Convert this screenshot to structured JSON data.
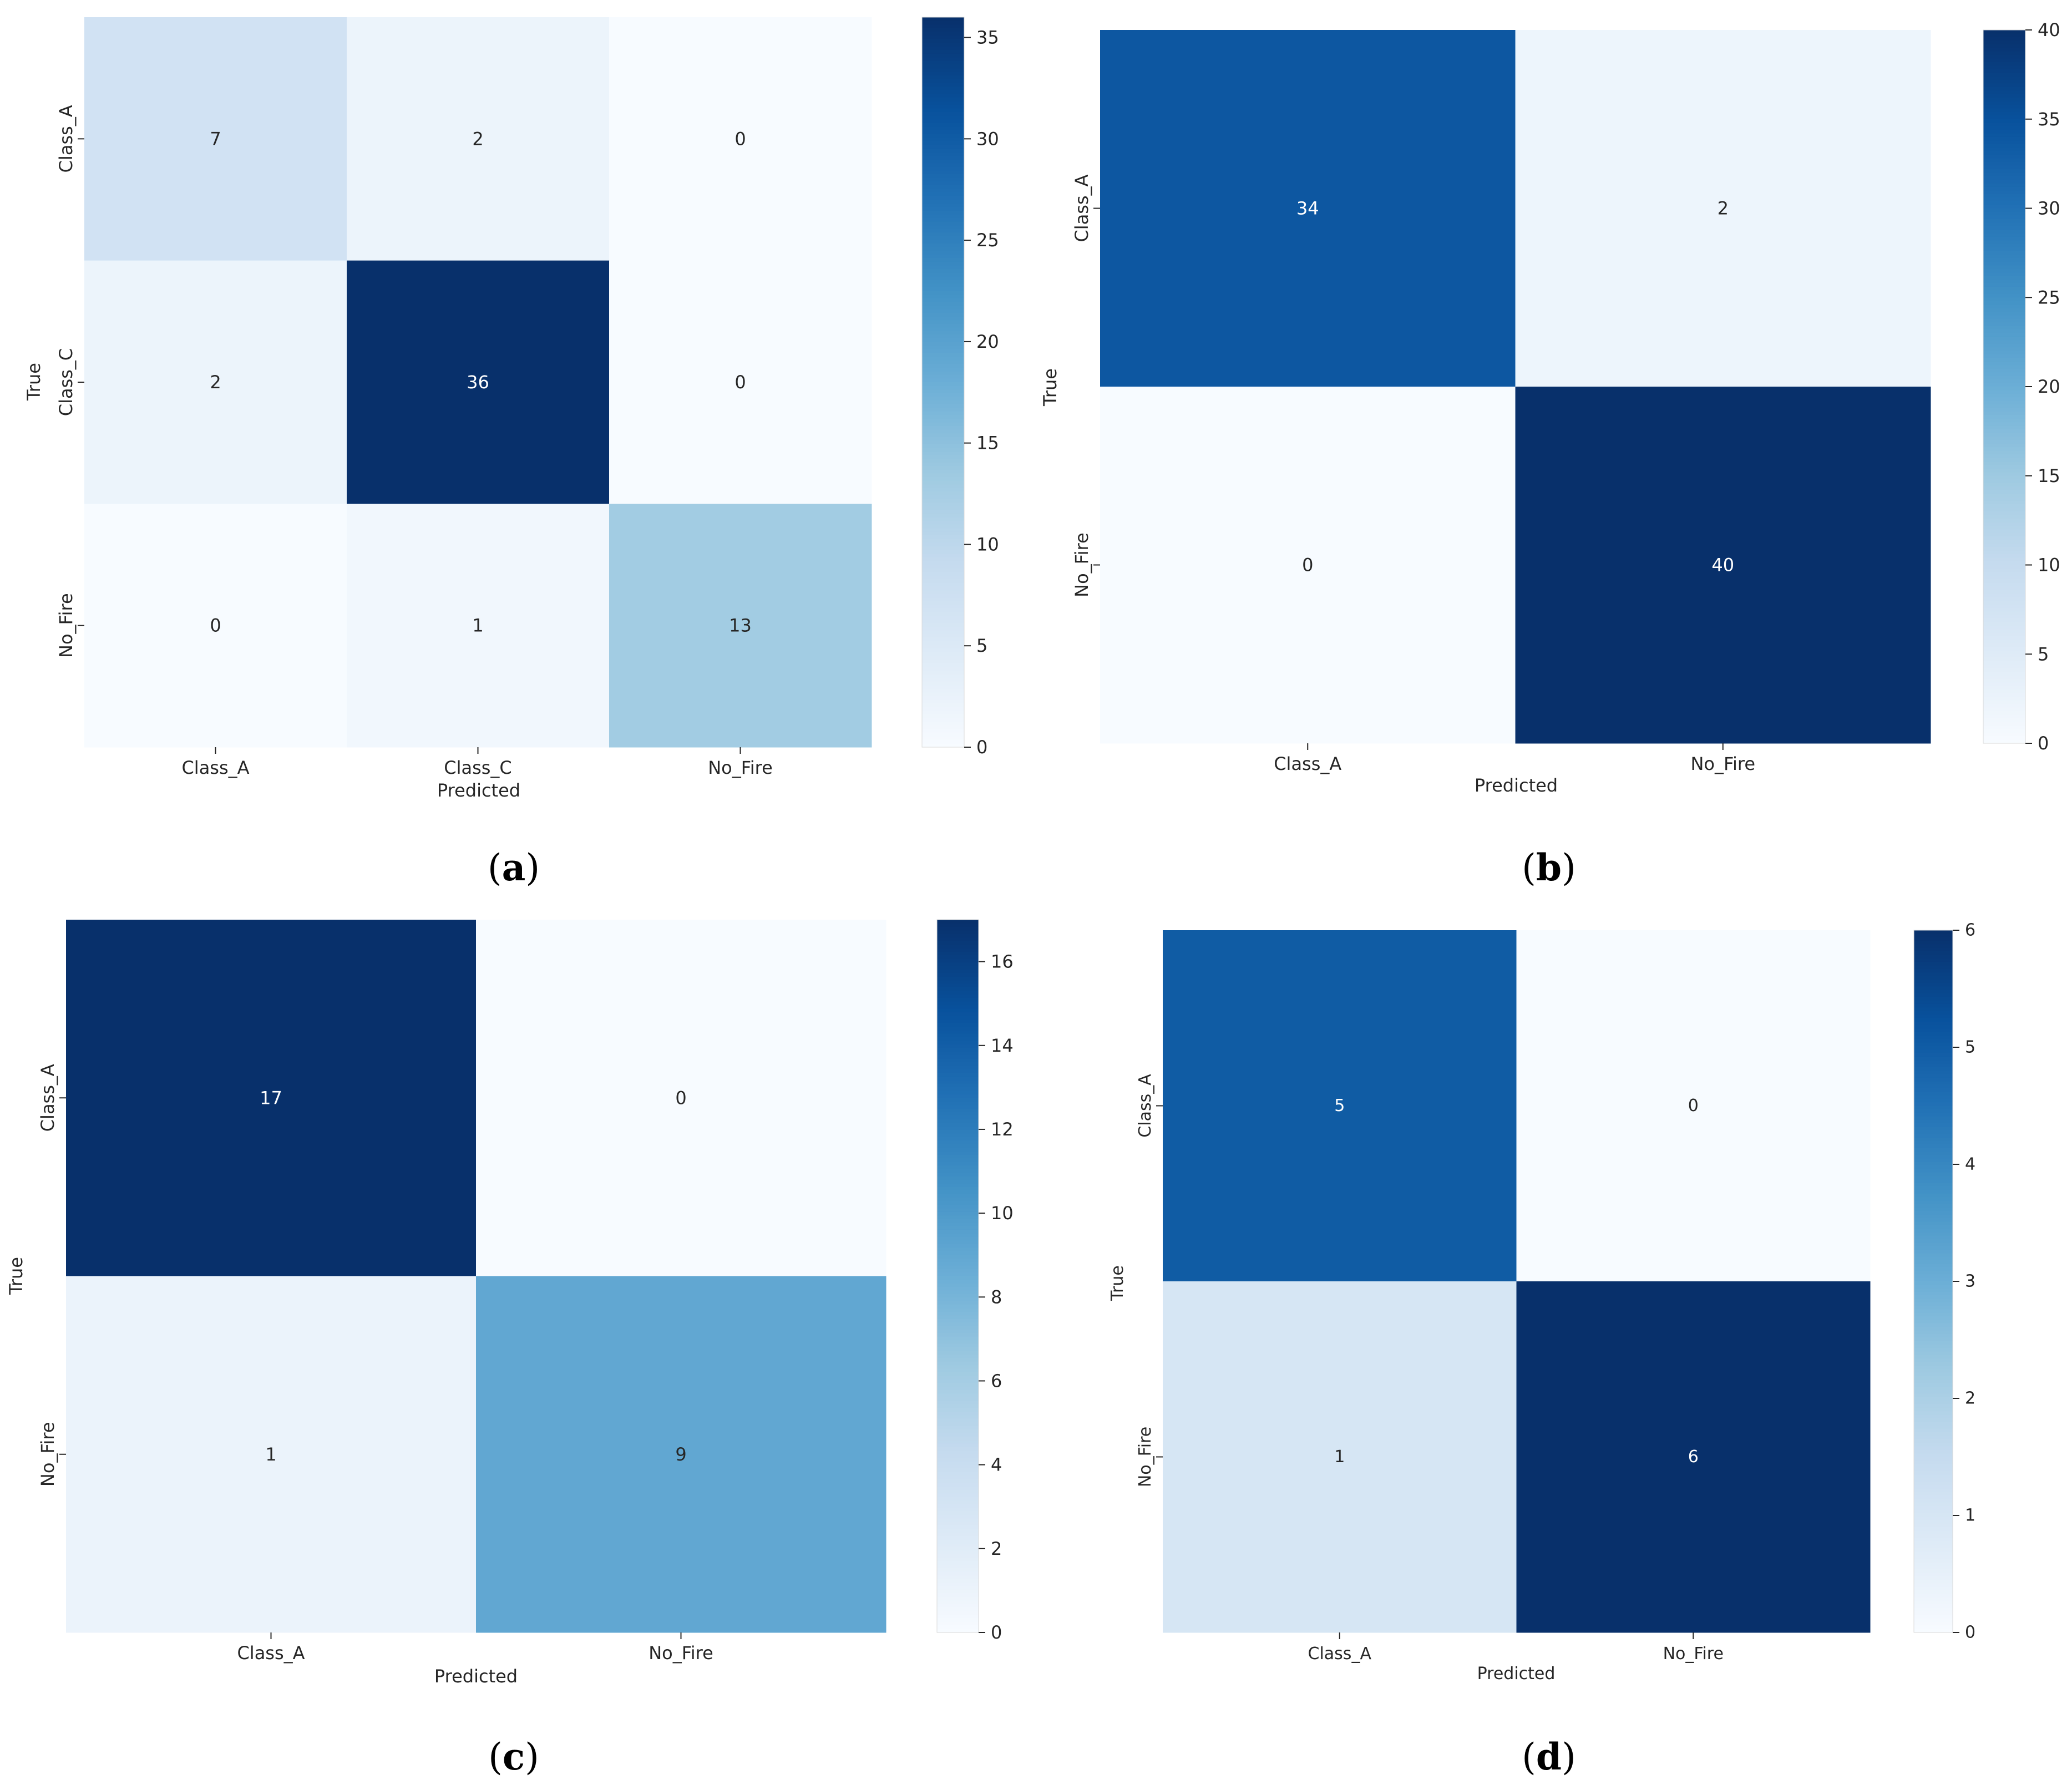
{
  "figure": {
    "panels": [
      {
        "label_open": "(",
        "letter": "a",
        "label_close": ")"
      },
      {
        "label_open": "(",
        "letter": "b",
        "label_close": ")"
      },
      {
        "label_open": "(",
        "letter": "c",
        "label_close": ")"
      },
      {
        "label_open": "(",
        "letter": "d",
        "label_close": ")"
      }
    ]
  },
  "colors": {
    "text": "#262626",
    "background": "#ffffff",
    "colormap": "Blues"
  },
  "chart_data": [
    {
      "type": "heatmap",
      "panel": "a",
      "xlabel": "Predicted",
      "ylabel": "True",
      "x_categories": [
        "Class_A",
        "Class_C",
        "No_Fire"
      ],
      "y_categories": [
        "Class_A",
        "Class_C",
        "No_Fire"
      ],
      "values": [
        [
          7,
          2,
          0
        ],
        [
          2,
          36,
          0
        ],
        [
          0,
          1,
          13
        ]
      ],
      "colorbar": {
        "vmin": 0,
        "vmax": 36,
        "ticks": [
          0,
          5,
          10,
          15,
          20,
          25,
          30,
          35
        ]
      }
    },
    {
      "type": "heatmap",
      "panel": "b",
      "xlabel": "Predicted",
      "ylabel": "True",
      "x_categories": [
        "Class_A",
        "No_Fire"
      ],
      "y_categories": [
        "Class_A",
        "No_Fire"
      ],
      "values": [
        [
          34,
          2
        ],
        [
          0,
          40
        ]
      ],
      "colorbar": {
        "vmin": 0,
        "vmax": 40,
        "ticks": [
          0,
          5,
          10,
          15,
          20,
          25,
          30,
          35,
          40
        ]
      }
    },
    {
      "type": "heatmap",
      "panel": "c",
      "xlabel": "Predicted",
      "ylabel": "True",
      "x_categories": [
        "Class_A",
        "No_Fire"
      ],
      "y_categories": [
        "Class_A",
        "No_Fire"
      ],
      "values": [
        [
          17,
          0
        ],
        [
          1,
          9
        ]
      ],
      "colorbar": {
        "vmin": 0,
        "vmax": 17,
        "ticks": [
          0,
          2,
          4,
          6,
          8,
          10,
          12,
          14,
          16
        ]
      }
    },
    {
      "type": "heatmap",
      "panel": "d",
      "xlabel": "Predicted",
      "ylabel": "True",
      "x_categories": [
        "Class_A",
        "No_Fire"
      ],
      "y_categories": [
        "Class_A",
        "No_Fire"
      ],
      "values": [
        [
          5,
          0
        ],
        [
          1,
          6
        ]
      ],
      "colorbar": {
        "vmin": 0,
        "vmax": 6,
        "ticks": [
          0,
          1,
          2,
          3,
          4,
          5,
          6
        ]
      }
    }
  ]
}
